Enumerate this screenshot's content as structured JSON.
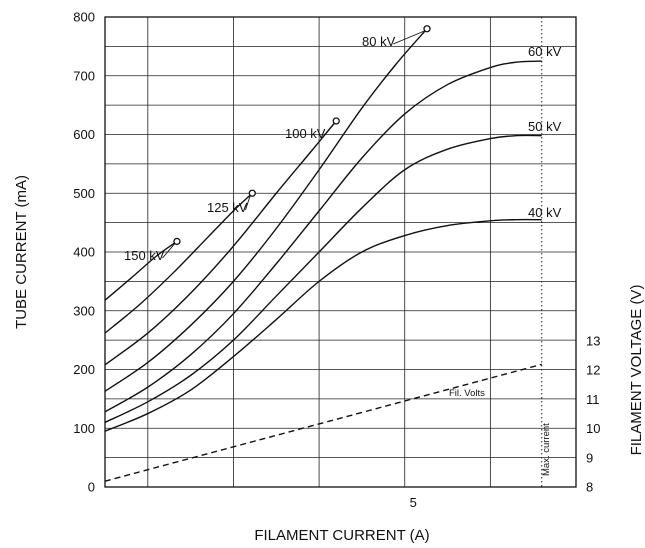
{
  "chart_data": {
    "type": "line",
    "title": "",
    "xlabel": "FILAMENT CURRENT (A)",
    "ylabel": "TUBE CURRENT (mA)",
    "y2label": "FILAMENT VOLTAGE (V)",
    "xlim": [
      3.2,
      5.95
    ],
    "ylim": [
      0,
      800
    ],
    "y2lim": [
      8,
      14
    ],
    "x_tick_labels": [
      {
        "x": 5,
        "label": "5"
      }
    ],
    "x_gridlines": [
      3.45,
      3.95,
      4.45,
      4.95,
      5.45
    ],
    "y_ticks": [
      0,
      100,
      200,
      300,
      400,
      500,
      600,
      700,
      800
    ],
    "y_gridlines": [
      0,
      50,
      100,
      150,
      200,
      250,
      300,
      350,
      400,
      450,
      500,
      550,
      600,
      650,
      700,
      750,
      800
    ],
    "y2_ticks": [
      8,
      9,
      10,
      11,
      12,
      13
    ],
    "grid": true,
    "series": [
      {
        "name": "150 kV",
        "endpoint_marker": true,
        "points": [
          [
            3.2,
            318
          ],
          [
            3.35,
            355
          ],
          [
            3.5,
            393
          ],
          [
            3.62,
            418
          ]
        ]
      },
      {
        "name": "125 kV",
        "endpoint_marker": true,
        "points": [
          [
            3.2,
            262
          ],
          [
            3.4,
            310
          ],
          [
            3.6,
            365
          ],
          [
            3.8,
            425
          ],
          [
            3.95,
            470
          ],
          [
            4.06,
            500
          ]
        ]
      },
      {
        "name": "100 kV",
        "endpoint_marker": true,
        "points": [
          [
            3.2,
            208
          ],
          [
            3.45,
            262
          ],
          [
            3.7,
            330
          ],
          [
            3.95,
            410
          ],
          [
            4.2,
            500
          ],
          [
            4.4,
            570
          ],
          [
            4.55,
            623
          ]
        ]
      },
      {
        "name": "80 kV",
        "endpoint_marker": true,
        "points": [
          [
            3.2,
            163
          ],
          [
            3.45,
            212
          ],
          [
            3.7,
            275
          ],
          [
            3.95,
            350
          ],
          [
            4.2,
            440
          ],
          [
            4.45,
            540
          ],
          [
            4.7,
            645
          ],
          [
            4.9,
            720
          ],
          [
            5.08,
            780
          ]
        ]
      },
      {
        "name": "60 kV",
        "endpoint_marker": false,
        "points": [
          [
            3.2,
            128
          ],
          [
            3.45,
            170
          ],
          [
            3.7,
            225
          ],
          [
            3.95,
            295
          ],
          [
            4.2,
            380
          ],
          [
            4.45,
            470
          ],
          [
            4.7,
            560
          ],
          [
            4.95,
            635
          ],
          [
            5.2,
            685
          ],
          [
            5.45,
            714
          ],
          [
            5.6,
            723
          ],
          [
            5.75,
            725
          ]
        ]
      },
      {
        "name": "50 kV",
        "endpoint_marker": false,
        "points": [
          [
            3.2,
            110
          ],
          [
            3.45,
            145
          ],
          [
            3.7,
            190
          ],
          [
            3.95,
            250
          ],
          [
            4.2,
            325
          ],
          [
            4.45,
            400
          ],
          [
            4.7,
            475
          ],
          [
            4.95,
            540
          ],
          [
            5.2,
            575
          ],
          [
            5.45,
            593
          ],
          [
            5.6,
            598
          ],
          [
            5.75,
            598
          ]
        ]
      },
      {
        "name": "40 kV",
        "endpoint_marker": false,
        "points": [
          [
            3.2,
            95
          ],
          [
            3.45,
            125
          ],
          [
            3.7,
            165
          ],
          [
            3.95,
            222
          ],
          [
            4.2,
            285
          ],
          [
            4.45,
            350
          ],
          [
            4.7,
            400
          ],
          [
            4.95,
            428
          ],
          [
            5.2,
            445
          ],
          [
            5.45,
            453
          ],
          [
            5.6,
            455
          ],
          [
            5.75,
            455
          ]
        ]
      },
      {
        "name": "Fil. Volts",
        "style": "dashed",
        "axis": "y2",
        "points": [
          [
            3.2,
            8.2
          ],
          [
            5.75,
            12.2
          ]
        ]
      }
    ],
    "annotations": {
      "max_current_label": "Max. current",
      "max_current_x": 5.75
    }
  }
}
